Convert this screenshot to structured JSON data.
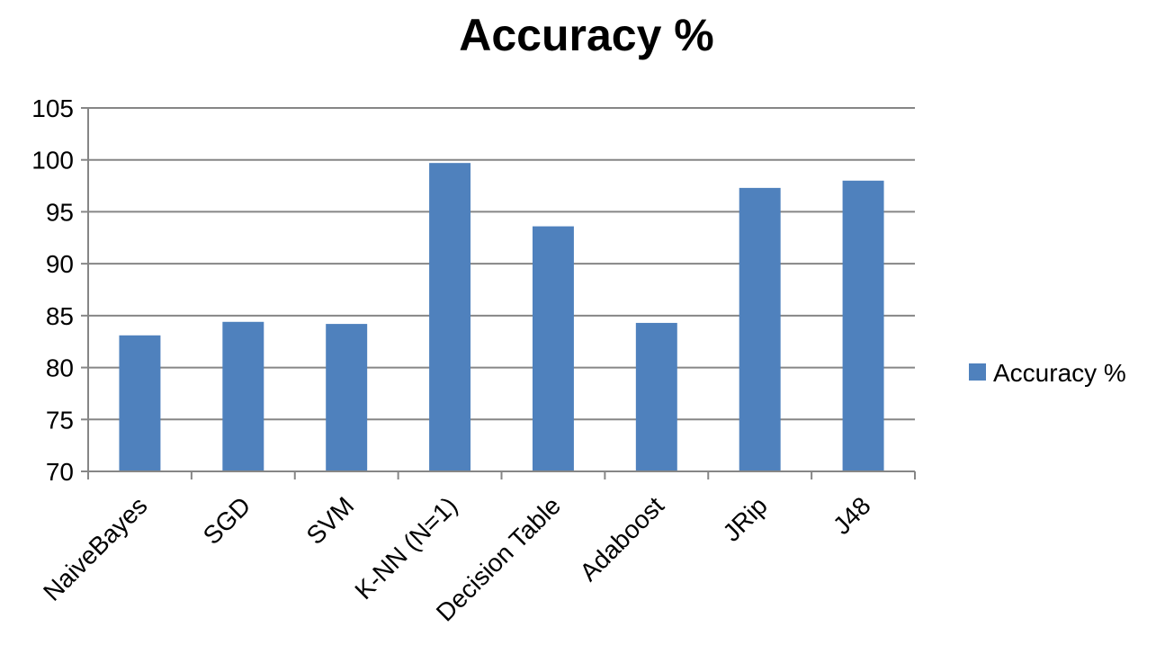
{
  "chart_data": {
    "type": "bar",
    "title": "Accuracy %",
    "xlabel": "",
    "ylabel": "",
    "categories": [
      "NaiveBayes",
      "SGD",
      "SVM",
      "K-NN (N=1)",
      "Decision Table",
      "Adaboost",
      "JRip",
      "J48"
    ],
    "series": [
      {
        "name": "Accuracy %",
        "values": [
          83.1,
          84.4,
          84.2,
          99.7,
          93.6,
          84.3,
          97.3,
          98.0
        ],
        "color": "#4f81bd"
      }
    ],
    "ylim": [
      70,
      105
    ],
    "yticks": [
      70,
      75,
      80,
      85,
      90,
      95,
      100,
      105
    ],
    "grid": true,
    "legend_position": "right"
  }
}
